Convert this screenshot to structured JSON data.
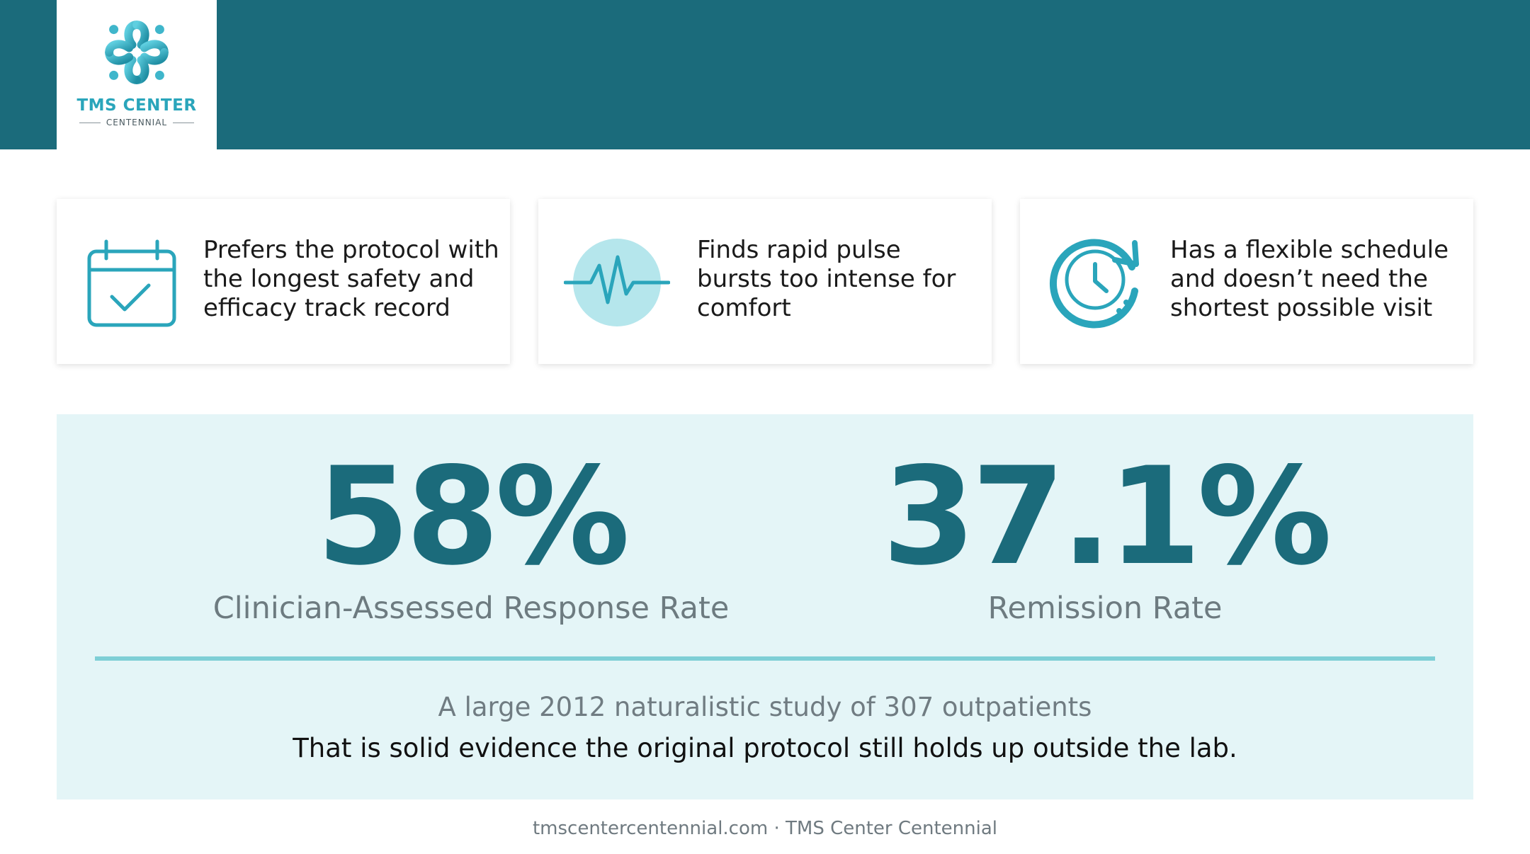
{
  "brand": {
    "name": "TMS CENTER",
    "location": "CENTENNIAL",
    "logo_icon": "interlocking-cross-icon",
    "colors": {
      "header": "#1b6b7b",
      "accent": "#2aa5bb",
      "panel": "#e4f5f7",
      "divider": "#7ecfd6"
    }
  },
  "cards": [
    {
      "icon": "calendar-check-icon",
      "lines": [
        "Prefers the protocol with",
        "the longest safety and",
        "efficacy track record"
      ]
    },
    {
      "icon": "pulse-wave-icon",
      "lines": [
        "Finds rapid pulse",
        "bursts too intense for",
        "comfort"
      ]
    },
    {
      "icon": "clock-refresh-icon",
      "lines": [
        "Has a flexible schedule",
        "and doesn’t need the",
        "shortest possible visit"
      ]
    }
  ],
  "stats": [
    {
      "value": "58%",
      "label": "Clinician-Assessed Response Rate"
    },
    {
      "value": "37.1%",
      "label": "Remission Rate"
    }
  ],
  "study_note": "A large 2012 naturalistic study of 307 outpatients",
  "evidence_note": "That is solid evidence the original protocol still holds up outside the lab.",
  "footer": "tmscentercentennial.com · TMS Center Centennial"
}
